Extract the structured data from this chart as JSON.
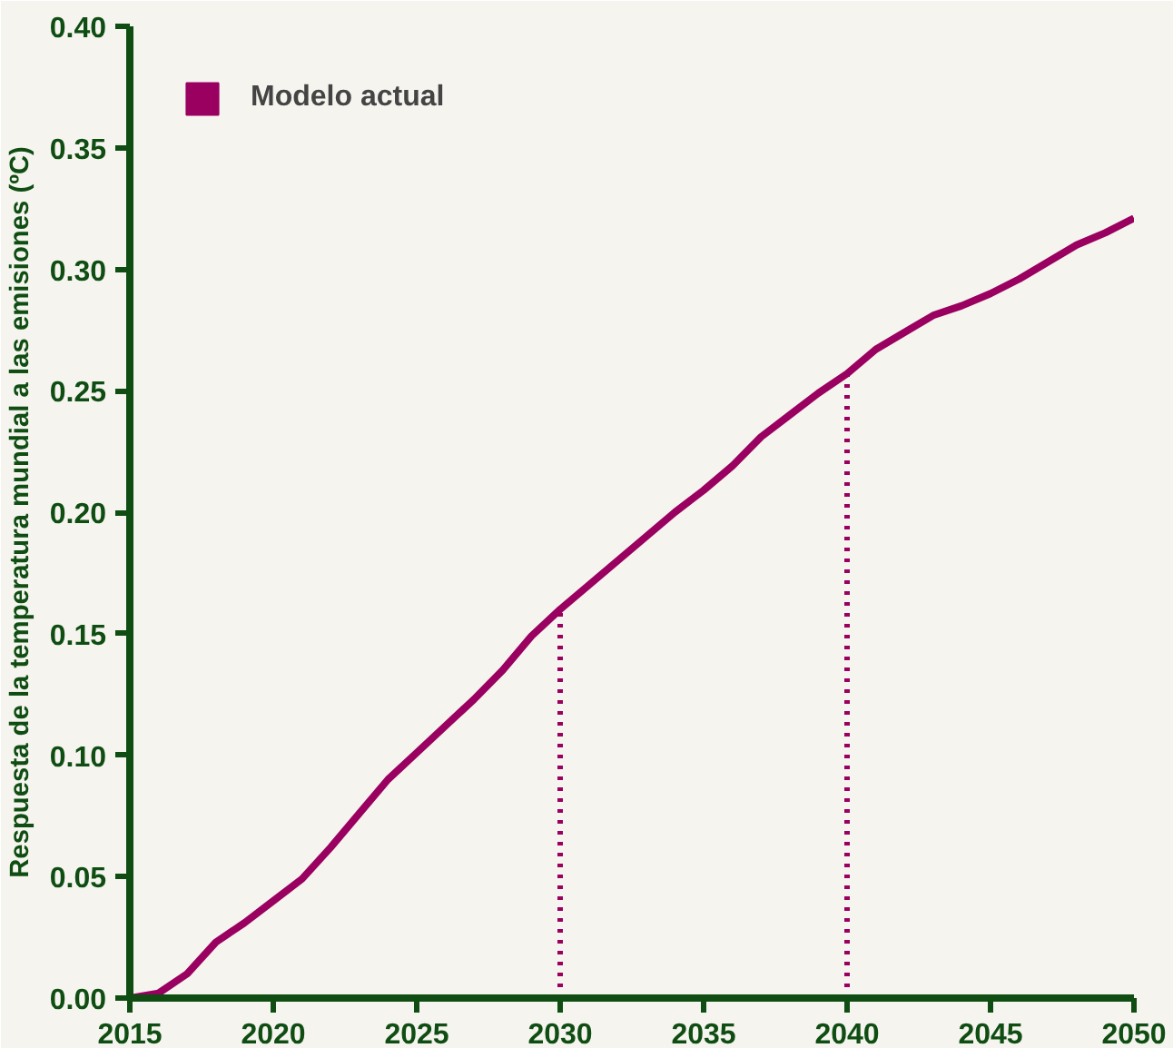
{
  "chart_data": {
    "type": "line",
    "ylabel": "Respuesta de la temperatura mundial a las emisiones (ºC)",
    "x": [
      2015,
      2016,
      2017,
      2018,
      2019,
      2020,
      2021,
      2022,
      2023,
      2024,
      2025,
      2026,
      2027,
      2028,
      2029,
      2030,
      2031,
      2032,
      2033,
      2034,
      2035,
      2036,
      2037,
      2038,
      2039,
      2040,
      2041,
      2042,
      2043,
      2044,
      2045,
      2046,
      2047,
      2048,
      2049,
      2050
    ],
    "series": [
      {
        "name": "Modelo actual",
        "color": "#990060",
        "values": [
          0.0,
          0.002,
          0.01,
          0.023,
          0.031,
          0.04,
          0.049,
          0.062,
          0.076,
          0.09,
          0.101,
          0.112,
          0.123,
          0.135,
          0.149,
          0.16,
          0.17,
          0.18,
          0.19,
          0.2,
          0.209,
          0.219,
          0.231,
          0.24,
          0.249,
          0.257,
          0.267,
          0.274,
          0.281,
          0.285,
          0.29,
          0.296,
          0.303,
          0.31,
          0.315,
          0.321
        ]
      }
    ],
    "xlim": [
      2015,
      2050
    ],
    "xticks": [
      2015,
      2020,
      2025,
      2030,
      2035,
      2040,
      2045,
      2050
    ],
    "ylim": [
      0,
      0.4
    ],
    "yticks": [
      {
        "value": 0,
        "label": "0.00"
      },
      {
        "value": 0.05,
        "label": "0.05"
      },
      {
        "value": 0.1,
        "label": "0.10"
      },
      {
        "value": 0.15,
        "label": "0.15"
      },
      {
        "value": 0.2,
        "label": "0.20"
      },
      {
        "value": 0.25,
        "label": "0.25"
      },
      {
        "value": 0.3,
        "label": "0.30"
      },
      {
        "value": 0.35,
        "label": "0.35"
      },
      {
        "value": 0.4,
        "label": "0.40"
      }
    ],
    "ref_lines": [
      {
        "axis": "x",
        "value": 2030,
        "color": "#990060",
        "line_style": "dotted"
      },
      {
        "axis": "x",
        "value": 2040,
        "color": "#990060",
        "line_style": "dotted"
      }
    ],
    "grid": false,
    "legend": "top left",
    "marker": "none",
    "line_style": "solid"
  }
}
